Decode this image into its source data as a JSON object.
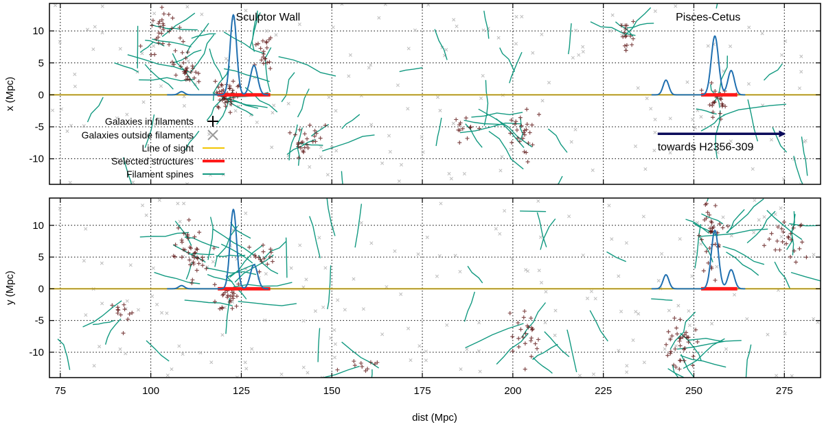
{
  "chart_data": [
    {
      "type": "scatter",
      "panel": "top",
      "xlabel": "",
      "ylabel": "x (Mpc)",
      "xlim": [
        72,
        285
      ],
      "ylim": [
        -14,
        14.3
      ],
      "x_ticks": [
        75,
        100,
        125,
        150,
        175,
        200,
        225,
        250,
        275
      ],
      "y_ticks": [
        10,
        5,
        0,
        -5,
        -10
      ],
      "grid": true,
      "grid_style": "dotted",
      "annotations": [
        {
          "text": "Sculptor Wall",
          "x": 123.5,
          "y": 11.6
        },
        {
          "text": "Pisces-Cetus",
          "x": 245,
          "y": 11.6
        },
        {
          "text": "towards H2356-309",
          "x": 240,
          "y": -8.7
        }
      ],
      "arrow": {
        "x0": 240,
        "x1": 275,
        "y": -6.1
      },
      "line_of_sight": {
        "y": 0
      },
      "selected_structures": [
        {
          "x0": 118.5,
          "x1": 133
        },
        {
          "x0": 252,
          "x1": 262
        }
      ],
      "density_profile": [
        {
          "center": 108.5,
          "height": 0.5,
          "width": 0.8
        },
        {
          "center": 122.8,
          "height": 12.5,
          "width": 0.9
        },
        {
          "center": 128.5,
          "height": 4.6,
          "width": 1.0
        },
        {
          "center": 242.3,
          "height": 2.3,
          "width": 0.8
        },
        {
          "center": 255.8,
          "height": 9.2,
          "width": 1.0
        },
        {
          "center": 260.3,
          "height": 3.8,
          "width": 0.9
        }
      ],
      "legend_position": "left",
      "legend": [
        {
          "label": "Galaxies in filaments",
          "marker": "plus",
          "color": "#000000"
        },
        {
          "label": "Galaxies outside filaments",
          "marker": "cross",
          "color": "#999999"
        },
        {
          "label": "Line of sight",
          "marker": "line",
          "color": "#f2c500"
        },
        {
          "label": "Selected structures",
          "marker": "line",
          "color": "#ff1a1a"
        },
        {
          "label": "Filament spines",
          "marker": "line",
          "color": "#119980"
        }
      ],
      "clusters": [
        {
          "x": 104,
          "y": 10,
          "sx": 4,
          "sy": 3,
          "n": 30
        },
        {
          "x": 121,
          "y": 0,
          "sx": 3,
          "sy": 2,
          "n": 40
        },
        {
          "x": 110,
          "y": 4,
          "sx": 3,
          "sy": 2,
          "n": 25
        },
        {
          "x": 131,
          "y": 7,
          "sx": 2,
          "sy": 2,
          "n": 20
        },
        {
          "x": 143,
          "y": -7,
          "sx": 4,
          "sy": 2,
          "n": 25
        },
        {
          "x": 203,
          "y": -6,
          "sx": 3,
          "sy": 3,
          "n": 25
        },
        {
          "x": 232,
          "y": 9,
          "sx": 2,
          "sy": 2,
          "n": 15
        },
        {
          "x": 257,
          "y": -1,
          "sx": 3,
          "sy": 2,
          "n": 25
        },
        {
          "x": 187,
          "y": -5,
          "sx": 4,
          "sy": 1.5,
          "n": 12
        }
      ]
    },
    {
      "type": "scatter",
      "panel": "bottom",
      "xlabel": "dist (Mpc)",
      "ylabel": "y (Mpc)",
      "xlim": [
        72,
        285
      ],
      "ylim": [
        -14,
        14.3
      ],
      "x_ticks": [
        75,
        100,
        125,
        150,
        175,
        200,
        225,
        250,
        275
      ],
      "y_ticks": [
        10,
        5,
        0,
        -5,
        -10
      ],
      "grid": true,
      "grid_style": "dotted",
      "line_of_sight": {
        "y": 0
      },
      "selected_structures": [
        {
          "x0": 118.5,
          "x1": 133
        },
        {
          "x0": 252,
          "x1": 262
        }
      ],
      "density_profile": [
        {
          "center": 108.5,
          "height": 0.5,
          "width": 0.8
        },
        {
          "center": 122.8,
          "height": 12.5,
          "width": 0.9
        },
        {
          "center": 128.5,
          "height": 3.8,
          "width": 1.0
        },
        {
          "center": 242.3,
          "height": 2.2,
          "width": 0.8
        },
        {
          "center": 255.8,
          "height": 9.2,
          "width": 1.0
        },
        {
          "center": 260.3,
          "height": 3.0,
          "width": 0.9
        }
      ],
      "clusters": [
        {
          "x": 112,
          "y": 6,
          "sx": 4,
          "sy": 3,
          "n": 40
        },
        {
          "x": 122,
          "y": -1,
          "sx": 3,
          "sy": 2,
          "n": 25
        },
        {
          "x": 130,
          "y": 5,
          "sx": 3,
          "sy": 2,
          "n": 15
        },
        {
          "x": 92,
          "y": -4,
          "sx": 2,
          "sy": 2,
          "n": 12
        },
        {
          "x": 203,
          "y": -8,
          "sx": 3,
          "sy": 3,
          "n": 25
        },
        {
          "x": 246,
          "y": -9,
          "sx": 3,
          "sy": 3,
          "n": 35
        },
        {
          "x": 255,
          "y": 8,
          "sx": 3,
          "sy": 4,
          "n": 35
        },
        {
          "x": 276,
          "y": 8,
          "sx": 5,
          "sy": 3,
          "n": 25
        },
        {
          "x": 160,
          "y": -12,
          "sx": 6,
          "sy": 1,
          "n": 10
        }
      ]
    }
  ]
}
